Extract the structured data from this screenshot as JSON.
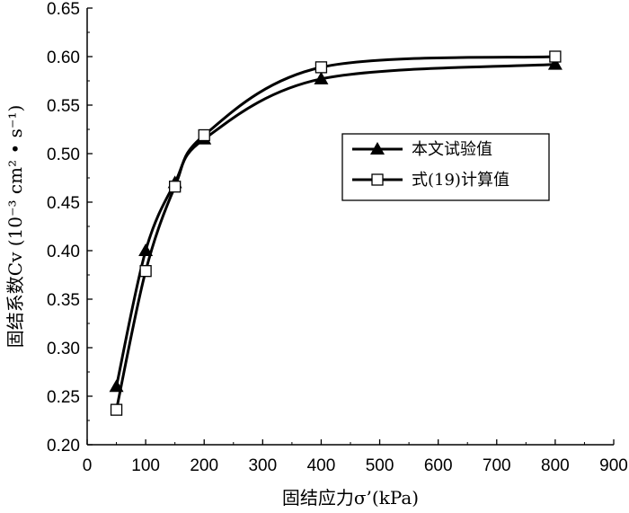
{
  "chart_data": {
    "type": "line",
    "title": "",
    "xlabel": "固结应力σ’(kPa)",
    "ylabel": "固结系数Cv (10⁻³ cm² • s⁻¹)",
    "xlim": [
      0,
      900
    ],
    "ylim": [
      0.2,
      0.65
    ],
    "x_ticks": [
      "0",
      "100",
      "200",
      "300",
      "400",
      "500",
      "600",
      "700",
      "800",
      "900"
    ],
    "y_ticks": [
      "0.20",
      "0.25",
      "0.30",
      "0.35",
      "0.40",
      "0.45",
      "0.50",
      "0.55",
      "0.60",
      "0.65"
    ],
    "grid": false,
    "legend_position": "center-right",
    "series": [
      {
        "name": "本文试验值",
        "marker": "filled-triangle",
        "color": "#000000",
        "x": [
          50,
          100,
          150,
          200,
          400,
          800
        ],
        "y": [
          0.26,
          0.4,
          0.47,
          0.515,
          0.577,
          0.592
        ]
      },
      {
        "name": "式(19)计算值",
        "marker": "open-square",
        "color": "#000000",
        "x": [
          50,
          100,
          150,
          200,
          400,
          800
        ],
        "y": [
          0.236,
          0.379,
          0.466,
          0.519,
          0.589,
          0.6
        ]
      }
    ]
  }
}
